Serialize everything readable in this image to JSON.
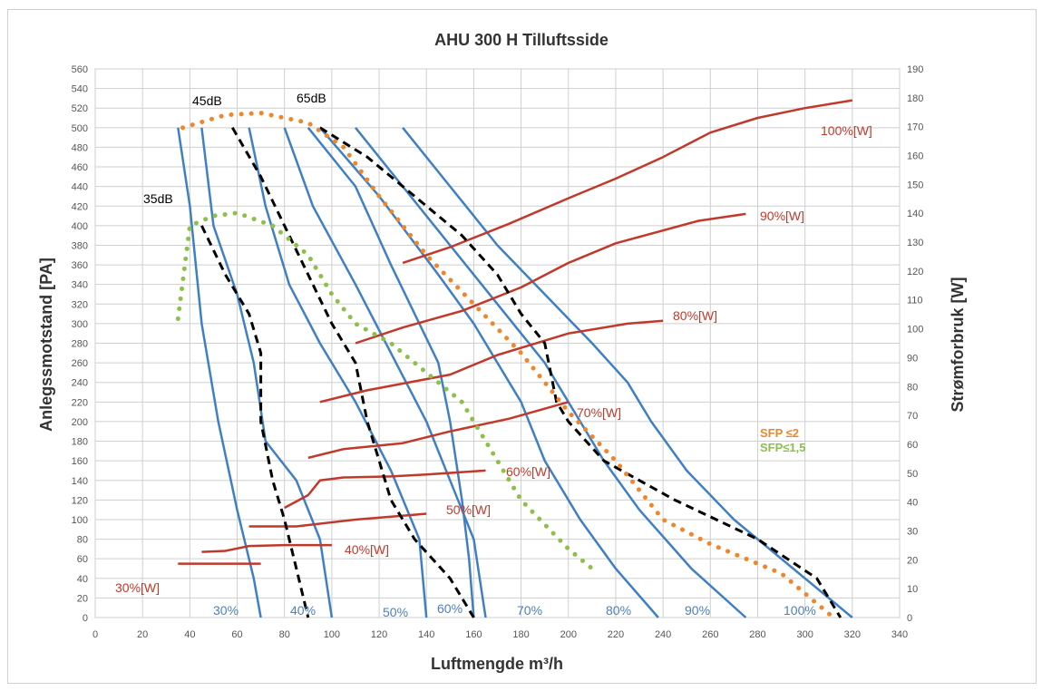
{
  "chart_data": {
    "type": "line",
    "title": "AHU 300 H Tilluftsside",
    "xlabel": "Luftmengde m³/h",
    "ylabel": "Anlegssmotstand [PA]",
    "y2label": "Strømforbruk [W]",
    "xlim": [
      0,
      340
    ],
    "ylim": [
      0,
      560
    ],
    "y2lim": [
      0,
      190
    ],
    "xticks": [
      "0",
      "20",
      "40",
      "60",
      "80",
      "100",
      "120",
      "140",
      "160",
      "180",
      "200",
      "220",
      "240",
      "260",
      "280",
      "300",
      "320",
      "340"
    ],
    "yticks": [
      "0",
      "20",
      "40",
      "60",
      "80",
      "100",
      "120",
      "140",
      "160",
      "180",
      "200",
      "220",
      "240",
      "260",
      "280",
      "300",
      "320",
      "340",
      "360",
      "380",
      "400",
      "420",
      "440",
      "460",
      "480",
      "500",
      "520",
      "540",
      "560"
    ],
    "y2ticks": [
      "0",
      "10",
      "20",
      "30",
      "40",
      "50",
      "60",
      "70",
      "80",
      "90",
      "100",
      "110",
      "120",
      "130",
      "140",
      "150",
      "160",
      "170",
      "180",
      "190"
    ],
    "grid": true,
    "colors": {
      "fan": "#3f7fc4",
      "power": "#c0392b",
      "db": "#000000",
      "sfp2": "#f0862c",
      "sfp15": "#8cc04b"
    },
    "fan_curves": [
      {
        "name": "30%",
        "points": [
          [
            35,
            500
          ],
          [
            40,
            420
          ],
          [
            45,
            300
          ],
          [
            52,
            200
          ],
          [
            60,
            110
          ],
          [
            67,
            40
          ],
          [
            70,
            0
          ]
        ]
      },
      {
        "name": "40%",
        "points": [
          [
            45,
            500
          ],
          [
            50,
            400
          ],
          [
            60,
            330
          ],
          [
            67,
            260
          ],
          [
            72,
            180
          ],
          [
            85,
            140
          ],
          [
            95,
            80
          ],
          [
            100,
            0
          ]
        ]
      },
      {
        "name": "50%",
        "points": [
          [
            65,
            500
          ],
          [
            72,
            420
          ],
          [
            82,
            340
          ],
          [
            95,
            280
          ],
          [
            110,
            220
          ],
          [
            125,
            150
          ],
          [
            137,
            80
          ],
          [
            140,
            0
          ]
        ]
      },
      {
        "name": "60%",
        "points": [
          [
            80,
            500
          ],
          [
            92,
            420
          ],
          [
            110,
            340
          ],
          [
            125,
            270
          ],
          [
            140,
            200
          ],
          [
            150,
            140
          ],
          [
            160,
            80
          ],
          [
            165,
            0
          ]
        ]
      },
      {
        "name": "70%",
        "points": [
          [
            90,
            500
          ],
          [
            110,
            440
          ],
          [
            125,
            360
          ],
          [
            145,
            260
          ],
          [
            150,
            200
          ],
          [
            155,
            120
          ],
          [
            158,
            60
          ],
          [
            160,
            0
          ]
        ]
      },
      {
        "name": "80%",
        "points": [
          [
            95,
            500
          ],
          [
            120,
            430
          ],
          [
            145,
            350
          ],
          [
            160,
            300
          ],
          [
            180,
            220
          ],
          [
            190,
            160
          ],
          [
            205,
            100
          ],
          [
            220,
            50
          ],
          [
            238,
            0
          ]
        ]
      },
      {
        "name": "90%",
        "points": [
          [
            110,
            500
          ],
          [
            130,
            440
          ],
          [
            150,
            380
          ],
          [
            170,
            320
          ],
          [
            190,
            260
          ],
          [
            205,
            200
          ],
          [
            215,
            160
          ],
          [
            230,
            110
          ],
          [
            252,
            50
          ],
          [
            275,
            0
          ]
        ]
      },
      {
        "name": "100%",
        "points": [
          [
            130,
            500
          ],
          [
            150,
            440
          ],
          [
            170,
            380
          ],
          [
            190,
            330
          ],
          [
            210,
            280
          ],
          [
            225,
            240
          ],
          [
            235,
            200
          ],
          [
            250,
            150
          ],
          [
            270,
            100
          ],
          [
            295,
            50
          ],
          [
            320,
            0
          ]
        ]
      }
    ],
    "power_curves": [
      {
        "name": "30%[W]",
        "points": [
          [
            35,
            55
          ],
          [
            70,
            55
          ]
        ]
      },
      {
        "name": "40%[W]",
        "points": [
          [
            45,
            67
          ],
          [
            55,
            68
          ],
          [
            65,
            73
          ],
          [
            80,
            74
          ],
          [
            100,
            74
          ]
        ]
      },
      {
        "name": "50%[W]",
        "points": [
          [
            65,
            93
          ],
          [
            85,
            93
          ],
          [
            110,
            100
          ],
          [
            135,
            105
          ],
          [
            140,
            106
          ]
        ]
      },
      {
        "name": "60%[W]",
        "points": [
          [
            80,
            112
          ],
          [
            90,
            125
          ],
          [
            95,
            140
          ],
          [
            105,
            143
          ],
          [
            125,
            144
          ],
          [
            140,
            146
          ],
          [
            165,
            150
          ]
        ]
      },
      {
        "name": "70%[W]",
        "points": [
          [
            90,
            163
          ],
          [
            105,
            172
          ],
          [
            130,
            178
          ],
          [
            150,
            190
          ],
          [
            175,
            203
          ],
          [
            200,
            220
          ]
        ]
      },
      {
        "name": "80%[W]",
        "points": [
          [
            95,
            220
          ],
          [
            115,
            232
          ],
          [
            150,
            248
          ],
          [
            170,
            268
          ],
          [
            200,
            290
          ],
          [
            225,
            300
          ],
          [
            240,
            303
          ]
        ]
      },
      {
        "name": "90%[W]",
        "points": [
          [
            110,
            280
          ],
          [
            130,
            296
          ],
          [
            155,
            313
          ],
          [
            180,
            337
          ],
          [
            200,
            362
          ],
          [
            220,
            382
          ],
          [
            255,
            405
          ],
          [
            275,
            412
          ]
        ]
      },
      {
        "name": "100%[W]",
        "points": [
          [
            130,
            362
          ],
          [
            150,
            378
          ],
          [
            175,
            402
          ],
          [
            200,
            428
          ],
          [
            220,
            448
          ],
          [
            240,
            470
          ],
          [
            260,
            495
          ],
          [
            280,
            510
          ],
          [
            300,
            520
          ],
          [
            320,
            528
          ]
        ]
      }
    ],
    "db_curves": [
      {
        "name": "35dB",
        "points": [
          [
            45,
            400
          ],
          [
            55,
            350
          ],
          [
            65,
            310
          ],
          [
            70,
            270
          ],
          [
            70,
            200
          ],
          [
            75,
            140
          ],
          [
            80,
            100
          ],
          [
            85,
            50
          ],
          [
            90,
            0
          ]
        ]
      },
      {
        "name": "45dB",
        "points": [
          [
            58,
            500
          ],
          [
            70,
            450
          ],
          [
            80,
            400
          ],
          [
            90,
            350
          ],
          [
            100,
            300
          ],
          [
            110,
            260
          ],
          [
            115,
            200
          ],
          [
            120,
            160
          ],
          [
            125,
            120
          ],
          [
            135,
            80
          ],
          [
            150,
            40
          ],
          [
            160,
            0
          ]
        ]
      },
      {
        "name": "65dB",
        "points": [
          [
            95,
            500
          ],
          [
            115,
            470
          ],
          [
            135,
            430
          ],
          [
            155,
            390
          ],
          [
            170,
            350
          ],
          [
            180,
            310
          ],
          [
            190,
            280
          ],
          [
            195,
            220
          ],
          [
            200,
            200
          ],
          [
            215,
            160
          ],
          [
            245,
            120
          ],
          [
            280,
            80
          ],
          [
            305,
            40
          ],
          [
            315,
            0
          ]
        ]
      }
    ],
    "sfp_curves": [
      {
        "name": "SFP ≤2",
        "points": [
          [
            37,
            500
          ],
          [
            55,
            513
          ],
          [
            70,
            515
          ],
          [
            90,
            505
          ],
          [
            105,
            480
          ],
          [
            120,
            430
          ],
          [
            140,
            370
          ],
          [
            160,
            320
          ],
          [
            180,
            270
          ],
          [
            200,
            210
          ],
          [
            220,
            160
          ],
          [
            240,
            100
          ],
          [
            260,
            75
          ],
          [
            290,
            45
          ],
          [
            312,
            0
          ]
        ]
      },
      {
        "name": "SFP≤1,5",
        "points": [
          [
            35,
            305
          ],
          [
            40,
            400
          ],
          [
            50,
            410
          ],
          [
            60,
            413
          ],
          [
            75,
            400
          ],
          [
            90,
            370
          ],
          [
            100,
            330
          ],
          [
            110,
            300
          ],
          [
            125,
            280
          ],
          [
            140,
            250
          ],
          [
            155,
            220
          ],
          [
            165,
            180
          ],
          [
            180,
            120
          ],
          [
            200,
            70
          ],
          [
            210,
            50
          ]
        ]
      }
    ],
    "labels": {
      "db_35": "35dB",
      "db_45": "45dB",
      "db_65": "65dB",
      "sfp2": "SFP ≤2",
      "sfp15": "SFP≤1,5",
      "p100": "100%[W]",
      "p90": "90%[W]",
      "p80": "80%[W]",
      "p70": "70%[W]",
      "p60": "60%[W]",
      "p50": "50%[W]",
      "p40": "40%[W]",
      "p30": "30%[W]",
      "f30": "30%",
      "f40": "40%",
      "f50": "50%",
      "f60": "60%",
      "f70": "70%",
      "f80": "80%",
      "f90": "90%",
      "f100": "100%"
    }
  }
}
